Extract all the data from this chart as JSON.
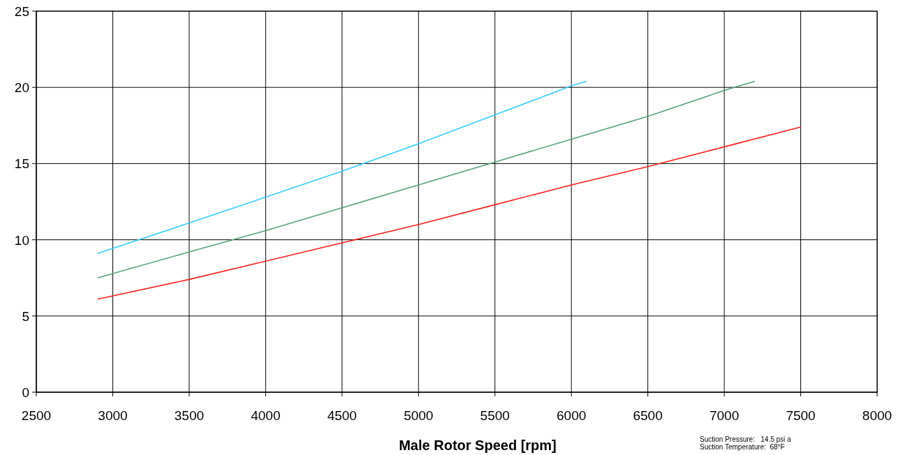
{
  "chart_data": {
    "type": "line",
    "xlabel": "Male Rotor Speed [rpm]",
    "xlim": [
      2500,
      8000
    ],
    "xticks": [
      2500,
      3000,
      3500,
      4000,
      4500,
      5000,
      5500,
      6000,
      6500,
      7000,
      7500,
      8000
    ],
    "ylim": [
      0,
      25
    ],
    "yticks": [
      0,
      5,
      10,
      15,
      20,
      25
    ],
    "grid": true,
    "annotations": [
      "Suction Pressure:   14.5 psi a",
      "Suction Temperature:  68°F"
    ],
    "series": [
      {
        "color": "#33ccff",
        "x": [
          2900,
          3500,
          4000,
          4500,
          5000,
          5500,
          6000,
          6100
        ],
        "values": [
          9.1,
          11.1,
          12.8,
          14.5,
          16.3,
          18.2,
          20.1,
          20.4
        ]
      },
      {
        "color": "#55a077",
        "x": [
          2900,
          3500,
          4000,
          4500,
          5000,
          5500,
          6000,
          6500,
          7000,
          7200
        ],
        "values": [
          7.5,
          9.2,
          10.6,
          12.1,
          13.6,
          15.1,
          16.6,
          18.1,
          19.8,
          20.4
        ]
      },
      {
        "color": "#ff2020",
        "x": [
          2900,
          3500,
          4000,
          4500,
          5000,
          5500,
          6000,
          6500,
          7000,
          7500
        ],
        "values": [
          6.1,
          7.4,
          8.6,
          9.8,
          11.0,
          12.3,
          13.6,
          14.8,
          16.1,
          17.4
        ]
      }
    ]
  }
}
